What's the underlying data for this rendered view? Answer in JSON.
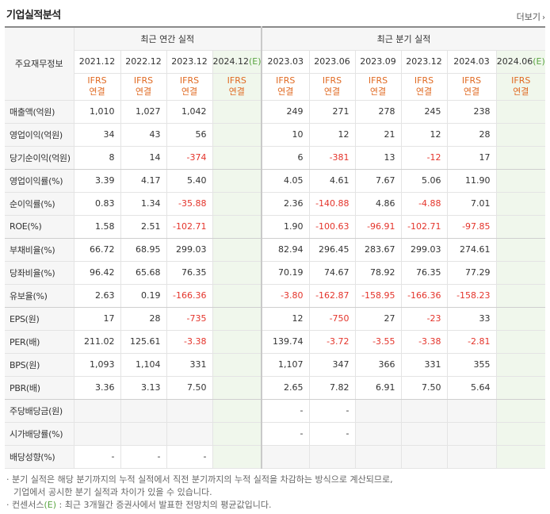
{
  "header": {
    "title": "기업실적분석",
    "more_label": "더보기"
  },
  "table": {
    "row_header": "주요재무정보",
    "groups": {
      "annual": "최근 연간 실적",
      "quarterly": "최근 분기 실적"
    },
    "periods": [
      {
        "label": "2021.12",
        "est": false
      },
      {
        "label": "2022.12",
        "est": false
      },
      {
        "label": "2023.12",
        "est": false
      },
      {
        "label": "2024.12",
        "est": true
      },
      {
        "label": "2023.03",
        "est": false
      },
      {
        "label": "2023.06",
        "est": false
      },
      {
        "label": "2023.09",
        "est": false
      },
      {
        "label": "2023.12",
        "est": false
      },
      {
        "label": "2024.03",
        "est": false
      },
      {
        "label": "2024.06",
        "est": true
      }
    ],
    "est_suffix": "(E)",
    "ifrs": {
      "line1": "IFRS",
      "line2": "연결"
    },
    "rows": [
      {
        "label": "매출액(억원)",
        "values": [
          "1,010",
          "1,027",
          "1,042",
          "",
          "249",
          "271",
          "278",
          "245",
          "238",
          ""
        ]
      },
      {
        "label": "영업이익(억원)",
        "values": [
          "34",
          "43",
          "56",
          "",
          "10",
          "12",
          "21",
          "12",
          "28",
          ""
        ]
      },
      {
        "label": "당기순이익(억원)",
        "values": [
          "8",
          "14",
          "-374",
          "",
          "6",
          "-381",
          "13",
          "-12",
          "17",
          ""
        ]
      },
      {
        "label": "영업이익률(%)",
        "values": [
          "3.39",
          "4.17",
          "5.40",
          "",
          "4.05",
          "4.61",
          "7.67",
          "5.06",
          "11.90",
          ""
        ]
      },
      {
        "label": "순이익률(%)",
        "values": [
          "0.83",
          "1.34",
          "-35.88",
          "",
          "2.36",
          "-140.88",
          "4.86",
          "-4.88",
          "7.01",
          ""
        ]
      },
      {
        "label": "ROE(%)",
        "values": [
          "1.58",
          "2.51",
          "-102.71",
          "",
          "1.90",
          "-100.63",
          "-96.91",
          "-102.71",
          "-97.85",
          ""
        ]
      },
      {
        "label": "부채비율(%)",
        "values": [
          "66.72",
          "68.95",
          "299.03",
          "",
          "82.94",
          "296.45",
          "283.67",
          "299.03",
          "274.61",
          ""
        ]
      },
      {
        "label": "당좌비율(%)",
        "values": [
          "96.42",
          "65.68",
          "76.35",
          "",
          "70.19",
          "74.67",
          "78.92",
          "76.35",
          "77.29",
          ""
        ]
      },
      {
        "label": "유보율(%)",
        "values": [
          "2.63",
          "0.19",
          "-166.36",
          "",
          "-3.80",
          "-162.87",
          "-158.95",
          "-166.36",
          "-158.23",
          ""
        ]
      },
      {
        "label": "EPS(원)",
        "values": [
          "17",
          "28",
          "-735",
          "",
          "12",
          "-750",
          "27",
          "-23",
          "33",
          ""
        ]
      },
      {
        "label": "PER(배)",
        "values": [
          "211.02",
          "125.61",
          "-3.38",
          "",
          "139.74",
          "-3.72",
          "-3.55",
          "-3.38",
          "-2.81",
          ""
        ]
      },
      {
        "label": "BPS(원)",
        "values": [
          "1,093",
          "1,104",
          "331",
          "",
          "1,107",
          "347",
          "366",
          "331",
          "355",
          ""
        ]
      },
      {
        "label": "PBR(배)",
        "values": [
          "3.36",
          "3.13",
          "7.50",
          "",
          "2.65",
          "7.82",
          "6.91",
          "7.50",
          "5.64",
          ""
        ]
      },
      {
        "label": "주당배당금(원)",
        "values": [
          "",
          "",
          "",
          "",
          "-",
          "-",
          "",
          "",
          "",
          ""
        ]
      },
      {
        "label": "시가배당률(%)",
        "values": [
          "",
          "",
          "",
          "",
          "-",
          "-",
          "",
          "",
          "",
          ""
        ]
      },
      {
        "label": "배당성향(%)",
        "values": [
          "-",
          "-",
          "-",
          "",
          "",
          "",
          "",
          "",
          "",
          ""
        ]
      }
    ]
  },
  "notes": {
    "line1": "분기 실적은 해당 분기까지의 누적 실적에서 직전 분기까지의 누적 실적을 차감하는 방식으로 계산되므로,",
    "line2": "기업에서 공시한 분기 실적과 차이가 있을 수 있습니다.",
    "line3_prefix": "컨센서스",
    "line3_mark": "(E)",
    "line3_suffix": ": 최근 3개월간 증권사에서 발표한 전망치의 평균값입니다."
  }
}
